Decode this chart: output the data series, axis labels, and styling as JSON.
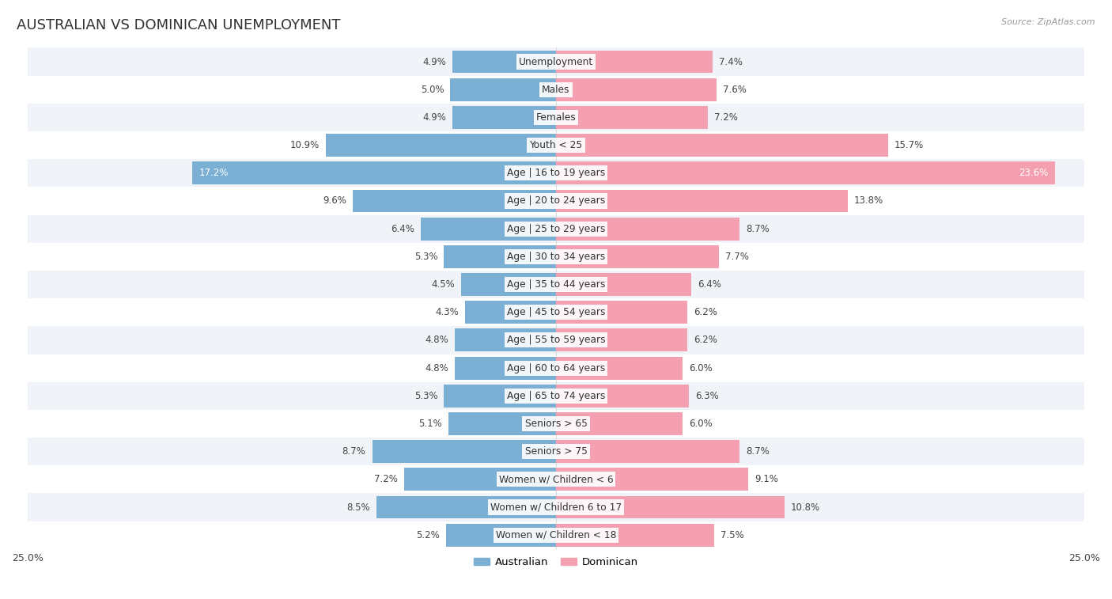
{
  "title": "AUSTRALIAN VS DOMINICAN UNEMPLOYMENT",
  "source": "Source: ZipAtlas.com",
  "categories": [
    "Unemployment",
    "Males",
    "Females",
    "Youth < 25",
    "Age | 16 to 19 years",
    "Age | 20 to 24 years",
    "Age | 25 to 29 years",
    "Age | 30 to 34 years",
    "Age | 35 to 44 years",
    "Age | 45 to 54 years",
    "Age | 55 to 59 years",
    "Age | 60 to 64 years",
    "Age | 65 to 74 years",
    "Seniors > 65",
    "Seniors > 75",
    "Women w/ Children < 6",
    "Women w/ Children 6 to 17",
    "Women w/ Children < 18"
  ],
  "australian": [
    4.9,
    5.0,
    4.9,
    10.9,
    17.2,
    9.6,
    6.4,
    5.3,
    4.5,
    4.3,
    4.8,
    4.8,
    5.3,
    5.1,
    8.7,
    7.2,
    8.5,
    5.2
  ],
  "dominican": [
    7.4,
    7.6,
    7.2,
    15.7,
    23.6,
    13.8,
    8.7,
    7.7,
    6.4,
    6.2,
    6.2,
    6.0,
    6.3,
    6.0,
    8.7,
    9.1,
    10.8,
    7.5
  ],
  "australian_color": "#7bafd4",
  "dominican_color": "#f4a0b0",
  "background_color": "#ffffff",
  "row_color_alt": "#f0f4f8",
  "axis_max": 25.0,
  "legend_labels": [
    "Australian",
    "Dominican"
  ],
  "title_fontsize": 13,
  "label_fontsize": 8.8,
  "value_fontsize": 8.5
}
